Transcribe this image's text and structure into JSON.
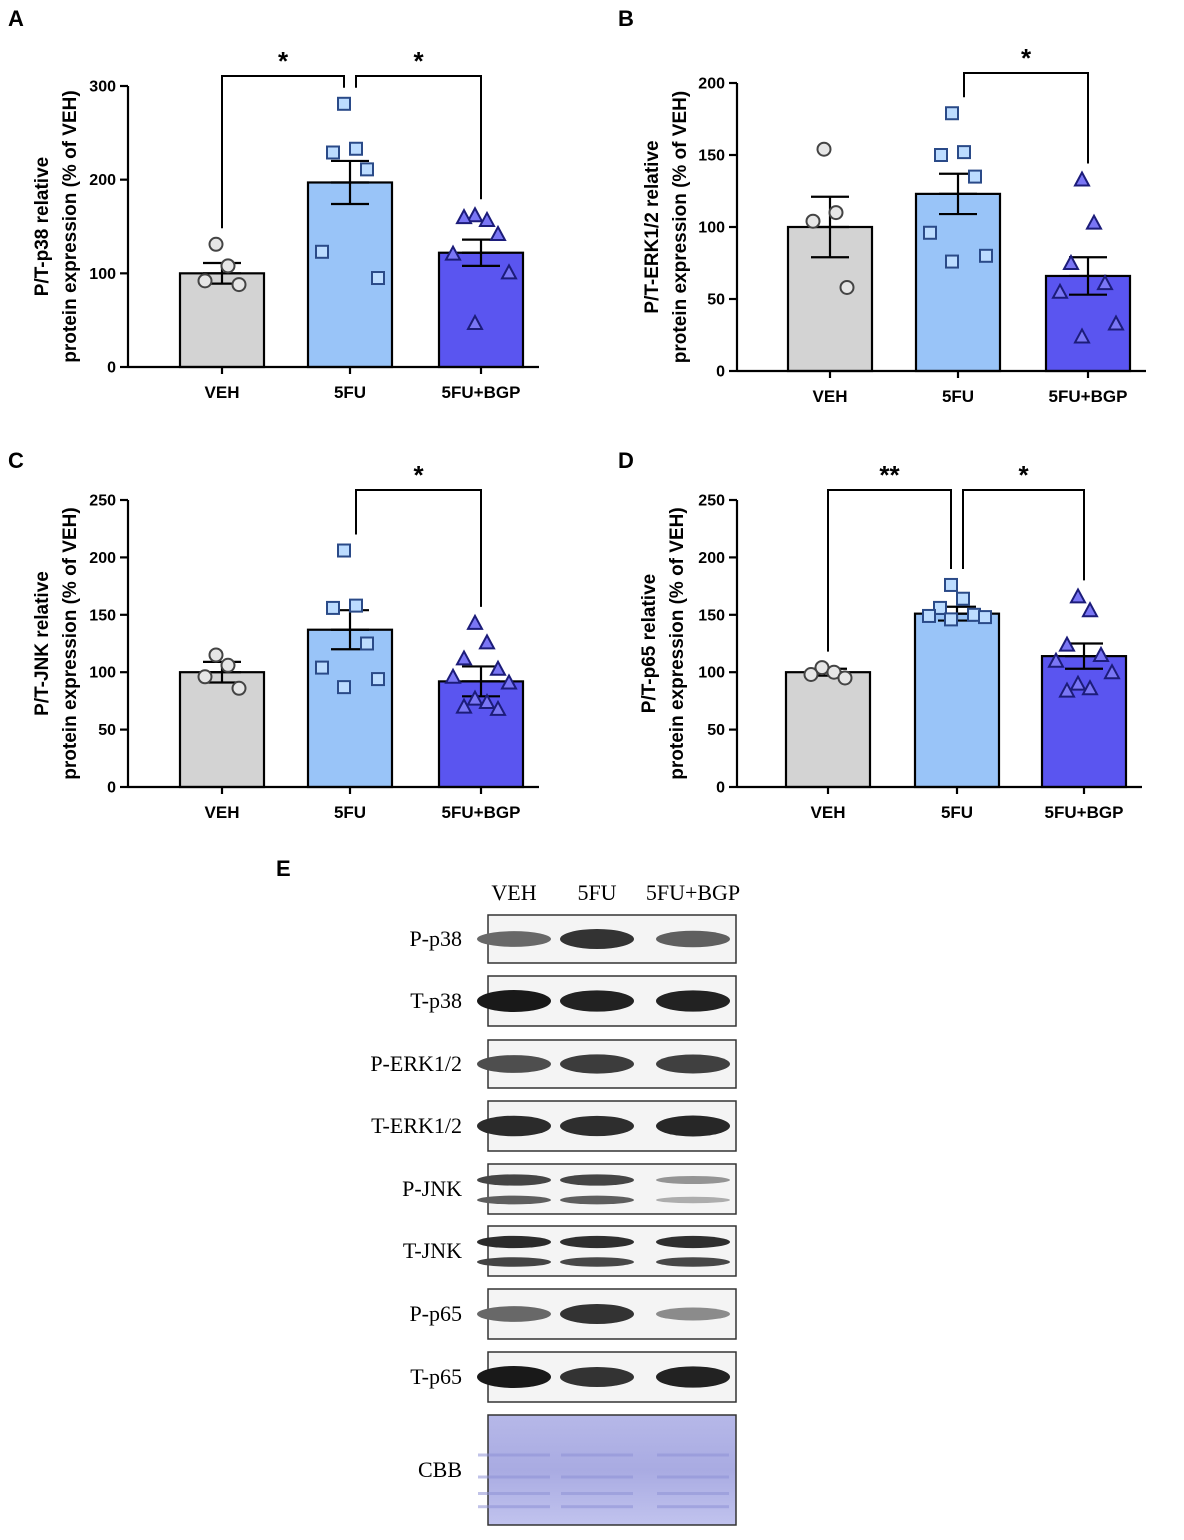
{
  "chart_data": [
    {
      "type": "bar",
      "panel": "A",
      "categories": [
        "VEH",
        "5FU",
        "5FU+BGP"
      ],
      "ylabel_line1": "P/T-p38 relative",
      "ylabel_line2": "protein expression (% of VEH)",
      "ylim": [
        0,
        300
      ],
      "yticks": [
        "0",
        "100",
        "200",
        "300"
      ],
      "means": [
        100,
        197,
        122
      ],
      "sem": [
        11,
        23,
        14
      ],
      "points": [
        [
          131,
          108,
          92,
          88
        ],
        [
          281,
          233,
          229,
          211,
          123,
          95
        ],
        [
          162,
          157,
          160,
          142,
          121,
          101,
          47
        ]
      ],
      "significance": [
        {
          "from": 0,
          "to": 1,
          "label": "*"
        },
        {
          "from": 1,
          "to": 2,
          "label": "*"
        }
      ]
    },
    {
      "type": "bar",
      "panel": "B",
      "categories": [
        "VEH",
        "5FU",
        "5FU+BGP"
      ],
      "ylabel_line1": "P/T-ERK1/2 relative",
      "ylabel_line2": "protein expression (% of VEH)",
      "ylim": [
        0,
        200
      ],
      "yticks": [
        "0",
        "50",
        "100",
        "150",
        "200"
      ],
      "means": [
        100,
        123,
        66
      ],
      "sem": [
        21,
        14,
        13
      ],
      "points": [
        [
          154,
          110,
          104,
          58
        ],
        [
          179,
          152,
          150,
          135,
          96,
          80,
          76
        ],
        [
          133,
          103,
          75,
          61,
          55,
          33,
          24
        ]
      ],
      "significance": [
        {
          "from": 1,
          "to": 2,
          "label": "*"
        }
      ]
    },
    {
      "type": "bar",
      "panel": "C",
      "categories": [
        "VEH",
        "5FU",
        "5FU+BGP"
      ],
      "ylabel_line1": "P/T-JNK relative",
      "ylabel_line2": "protein expression (% of VEH)",
      "ylim": [
        0,
        250
      ],
      "yticks": [
        "0",
        "50",
        "100",
        "150",
        "200",
        "250"
      ],
      "means": [
        100,
        137,
        92
      ],
      "sem": [
        9,
        17,
        13
      ],
      "points": [
        [
          115,
          106,
          96,
          86
        ],
        [
          206,
          158,
          156,
          125,
          104,
          94,
          87
        ],
        [
          143,
          126,
          112,
          103,
          96,
          91,
          77,
          74,
          70,
          68
        ]
      ],
      "significance": [
        {
          "from": 1,
          "to": 2,
          "label": "*"
        }
      ]
    },
    {
      "type": "bar",
      "panel": "D",
      "categories": [
        "VEH",
        "5FU",
        "5FU+BGP"
      ],
      "ylabel_line1": "P/T-p65 relative",
      "ylabel_line2": "protein expression (% of VEH)",
      "ylim": [
        0,
        250
      ],
      "yticks": [
        "0",
        "50",
        "100",
        "150",
        "200",
        "250"
      ],
      "means": [
        100,
        151,
        114
      ],
      "sem": [
        3,
        6,
        11
      ],
      "points": [
        [
          104,
          100,
          98,
          95
        ],
        [
          176,
          164,
          156,
          150,
          149,
          148,
          146
        ],
        [
          166,
          154,
          124,
          115,
          110,
          100,
          90,
          86,
          84
        ]
      ],
      "significance": [
        {
          "from": 0,
          "to": 1,
          "label": "**"
        },
        {
          "from": 1,
          "to": 2,
          "label": "*"
        }
      ]
    }
  ],
  "colors": {
    "VEH": "#d3d3d3",
    "5FU": "#99c4f8",
    "5FU+BGP": "#5a55f0",
    "axis": "#000000"
  },
  "blot": {
    "panel": "E",
    "lanes": [
      "VEH",
      "5FU",
      "5FU+BGP"
    ],
    "rows": [
      {
        "label": "P-p38",
        "bands": 1,
        "intensity": [
          0.55,
          0.85,
          0.6
        ]
      },
      {
        "label": "T-p38",
        "bands": 1,
        "intensity": [
          1.0,
          0.95,
          0.95
        ]
      },
      {
        "label": "P-ERK1/2",
        "bands": 1,
        "intensity": [
          0.7,
          0.8,
          0.78
        ]
      },
      {
        "label": "T-ERK1/2",
        "bands": 1,
        "intensity": [
          0.9,
          0.88,
          0.92
        ]
      },
      {
        "label": "P-JNK",
        "bands": 2,
        "intensity": [
          0.75,
          0.75,
          0.3
        ]
      },
      {
        "label": "T-JNK",
        "bands": 2,
        "intensity": [
          0.9,
          0.88,
          0.88
        ]
      },
      {
        "label": "P-p65",
        "bands": 1,
        "intensity": [
          0.55,
          0.85,
          0.35
        ]
      },
      {
        "label": "T-p65",
        "bands": 1,
        "intensity": [
          1.0,
          0.85,
          0.95
        ]
      },
      {
        "label": "CBB",
        "bands": 0,
        "intensity": [
          0.6,
          0.6,
          0.6
        ]
      }
    ]
  }
}
